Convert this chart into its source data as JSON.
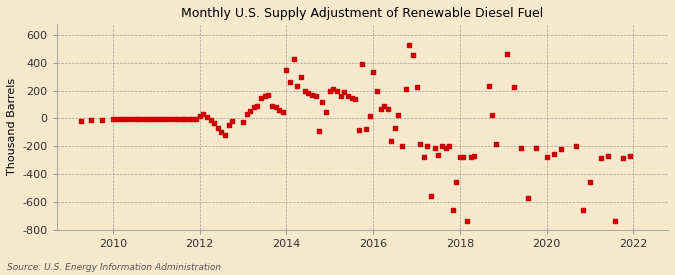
{
  "title": "Monthly U.S. Supply Adjustment of Renewable Diesel Fuel",
  "ylabel": "Thousand Barrels",
  "source": "Source: U.S. Energy Information Administration",
  "background_color": "#f5e8cc",
  "plot_bg_color": "#f5e8cc",
  "marker_color": "#cc0000",
  "xlim_min": 2008.7,
  "xlim_max": 2022.8,
  "ylim_min": -800,
  "ylim_max": 680,
  "yticks": [
    -800,
    -600,
    -400,
    -200,
    0,
    200,
    400,
    600
  ],
  "xticks": [
    2010,
    2012,
    2014,
    2016,
    2018,
    2020,
    2022
  ],
  "data": [
    [
      2009.25,
      -15
    ],
    [
      2009.5,
      -10
    ],
    [
      2009.75,
      -8
    ],
    [
      2010.0,
      -5
    ],
    [
      2010.08,
      -5
    ],
    [
      2010.17,
      -5
    ],
    [
      2010.25,
      -5
    ],
    [
      2010.33,
      -5
    ],
    [
      2010.42,
      -5
    ],
    [
      2010.5,
      -5
    ],
    [
      2010.58,
      -5
    ],
    [
      2010.67,
      -5
    ],
    [
      2010.75,
      -5
    ],
    [
      2010.83,
      -5
    ],
    [
      2010.92,
      -5
    ],
    [
      2011.0,
      -5
    ],
    [
      2011.08,
      -5
    ],
    [
      2011.17,
      -5
    ],
    [
      2011.25,
      -5
    ],
    [
      2011.33,
      -5
    ],
    [
      2011.42,
      -5
    ],
    [
      2011.5,
      -5
    ],
    [
      2011.58,
      -5
    ],
    [
      2011.67,
      -5
    ],
    [
      2011.75,
      -5
    ],
    [
      2011.83,
      -5
    ],
    [
      2011.92,
      -5
    ],
    [
      2012.0,
      20
    ],
    [
      2012.08,
      30
    ],
    [
      2012.17,
      10
    ],
    [
      2012.25,
      -10
    ],
    [
      2012.33,
      -30
    ],
    [
      2012.42,
      -70
    ],
    [
      2012.5,
      -100
    ],
    [
      2012.58,
      -120
    ],
    [
      2012.67,
      -50
    ],
    [
      2012.75,
      -15
    ],
    [
      2013.0,
      -25
    ],
    [
      2013.08,
      30
    ],
    [
      2013.17,
      55
    ],
    [
      2013.25,
      80
    ],
    [
      2013.33,
      90
    ],
    [
      2013.42,
      150
    ],
    [
      2013.5,
      160
    ],
    [
      2013.58,
      170
    ],
    [
      2013.67,
      90
    ],
    [
      2013.75,
      80
    ],
    [
      2013.83,
      60
    ],
    [
      2013.92,
      50
    ],
    [
      2014.0,
      350
    ],
    [
      2014.08,
      265
    ],
    [
      2014.17,
      430
    ],
    [
      2014.25,
      230
    ],
    [
      2014.33,
      300
    ],
    [
      2014.42,
      200
    ],
    [
      2014.5,
      180
    ],
    [
      2014.58,
      170
    ],
    [
      2014.67,
      160
    ],
    [
      2014.75,
      -90
    ],
    [
      2014.83,
      120
    ],
    [
      2014.92,
      50
    ],
    [
      2015.0,
      195
    ],
    [
      2015.08,
      210
    ],
    [
      2015.17,
      200
    ],
    [
      2015.25,
      165
    ],
    [
      2015.33,
      190
    ],
    [
      2015.42,
      160
    ],
    [
      2015.5,
      150
    ],
    [
      2015.58,
      140
    ],
    [
      2015.67,
      -80
    ],
    [
      2015.75,
      390
    ],
    [
      2015.83,
      -75
    ],
    [
      2015.92,
      20
    ],
    [
      2016.0,
      335
    ],
    [
      2016.08,
      200
    ],
    [
      2016.17,
      70
    ],
    [
      2016.25,
      90
    ],
    [
      2016.33,
      65
    ],
    [
      2016.42,
      -160
    ],
    [
      2016.5,
      -65
    ],
    [
      2016.58,
      25
    ],
    [
      2016.67,
      -200
    ],
    [
      2016.75,
      210
    ],
    [
      2016.83,
      530
    ],
    [
      2016.92,
      455
    ],
    [
      2017.0,
      225
    ],
    [
      2017.08,
      -185
    ],
    [
      2017.17,
      -280
    ],
    [
      2017.25,
      -200
    ],
    [
      2017.33,
      -560
    ],
    [
      2017.42,
      -210
    ],
    [
      2017.5,
      -265
    ],
    [
      2017.58,
      -200
    ],
    [
      2017.67,
      -215
    ],
    [
      2017.75,
      -195
    ],
    [
      2017.83,
      -655
    ],
    [
      2017.92,
      -455
    ],
    [
      2018.0,
      -280
    ],
    [
      2018.08,
      -275
    ],
    [
      2018.17,
      -740
    ],
    [
      2018.25,
      -275
    ],
    [
      2018.33,
      -270
    ],
    [
      2018.67,
      235
    ],
    [
      2018.75,
      25
    ],
    [
      2018.83,
      -185
    ],
    [
      2019.08,
      465
    ],
    [
      2019.25,
      225
    ],
    [
      2019.42,
      -215
    ],
    [
      2019.58,
      -570
    ],
    [
      2019.75,
      -210
    ],
    [
      2020.0,
      -275
    ],
    [
      2020.17,
      -255
    ],
    [
      2020.33,
      -220
    ],
    [
      2020.67,
      -195
    ],
    [
      2020.83,
      -655
    ],
    [
      2021.0,
      -455
    ],
    [
      2021.25,
      -285
    ],
    [
      2021.42,
      -270
    ],
    [
      2021.58,
      -735
    ],
    [
      2021.75,
      -285
    ],
    [
      2021.92,
      -270
    ]
  ]
}
